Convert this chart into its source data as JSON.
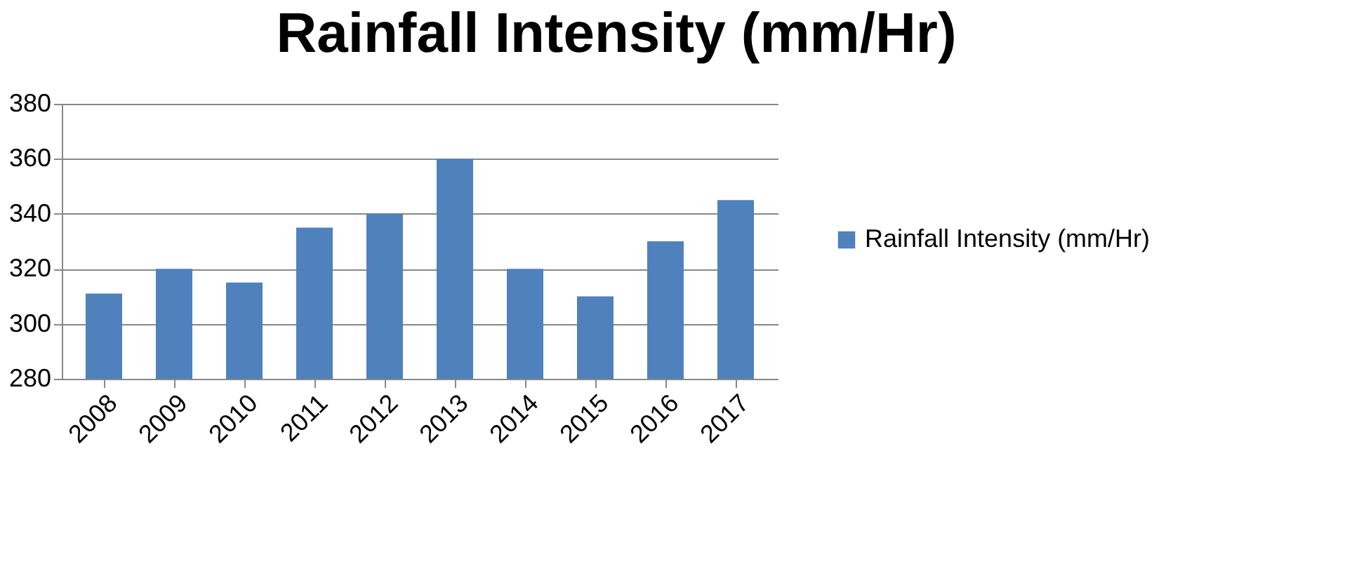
{
  "chart_data": {
    "type": "bar",
    "title": "Rainfall Intensity (mm/Hr)",
    "categories": [
      "2008",
      "2009",
      "2010",
      "2011",
      "2012",
      "2013",
      "2014",
      "2015",
      "2016",
      "2017"
    ],
    "series": [
      {
        "name": "Rainfall Intensity (mm/Hr)",
        "color": "#4f81bd",
        "values": [
          311,
          320,
          315,
          335,
          340,
          360,
          320,
          310,
          330,
          345
        ]
      }
    ],
    "ylim": [
      280,
      380
    ],
    "yticks": [
      280,
      300,
      320,
      340,
      360,
      380
    ],
    "grid": "y",
    "legend": "right"
  }
}
